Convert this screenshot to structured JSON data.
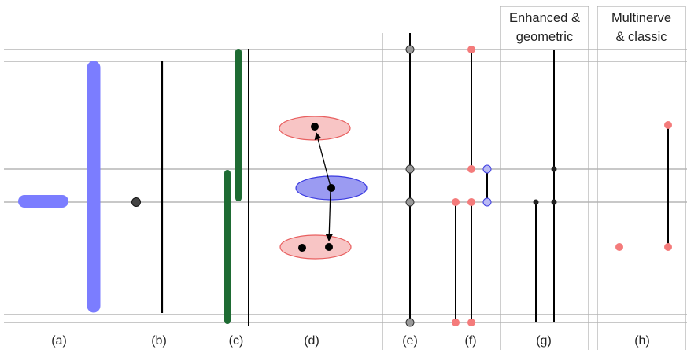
{
  "panel_labels": {
    "a": "(a)",
    "b": "(b)",
    "c": "(c)",
    "d": "(d)",
    "e": "(e)",
    "f": "(f)",
    "g": "(g)",
    "h": "(h)"
  },
  "headers": {
    "g_line1": "Enhanced &",
    "g_line2": "geometric",
    "h_line1": "Multinerve",
    "h_line2": "& classic"
  },
  "colors": {
    "reference_line": "#a6a6a6",
    "divider": "#b3b3b3",
    "bar_blue": "#7b7dff",
    "bar_green": "#1e6b33",
    "node_gray": "#999999",
    "node_red": "#f47b7b",
    "node_blue": "#b9b9f4",
    "ellipse_red_fill": "#f8c5c5",
    "ellipse_red_stroke": "#e85f5f",
    "ellipse_blue_fill": "#9b9bf2",
    "ellipse_blue_stroke": "#3a3ae0",
    "ink": "#000000"
  }
}
